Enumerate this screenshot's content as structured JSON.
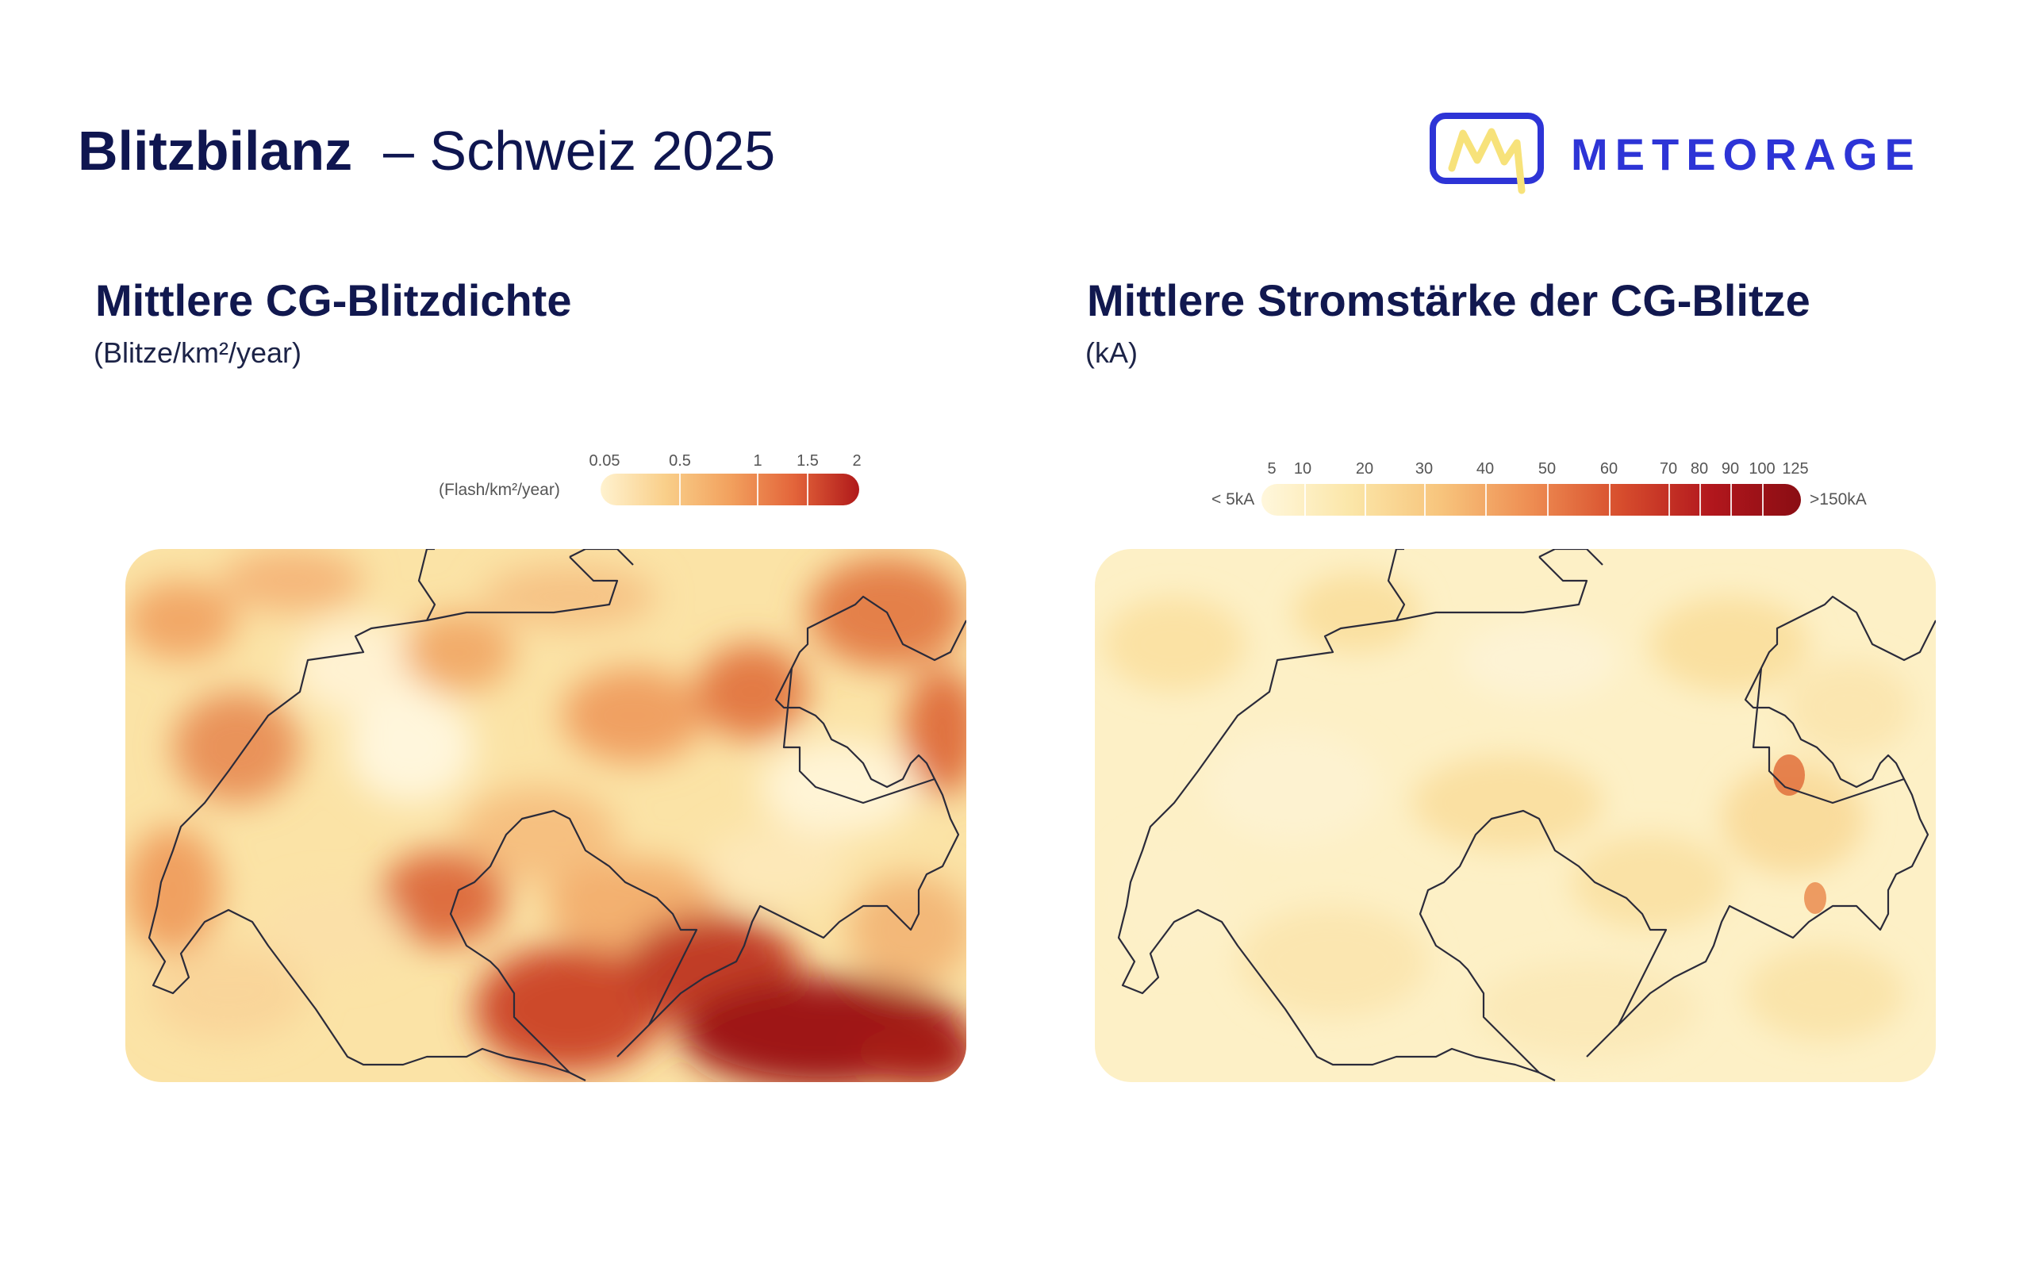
{
  "header": {
    "title_bold": "Blitzbilanz",
    "title_rest": "– Schweiz 2025",
    "logo_text": "METEORAGE",
    "logo_icon": "lightning-m-logo-icon",
    "brand_color": "#2d34d6",
    "logo_accent_color": "#f7e27a"
  },
  "density_panel": {
    "title": "Mittlere CG-Blitzdichte",
    "subtitle": "(Blitze/km²/year)",
    "legend": {
      "unit_label": "(Flash/km²/year)",
      "ticks": [
        "0.05",
        "0.5",
        "1",
        "1.5",
        "2"
      ],
      "colors": [
        "#fff2cf",
        "#f9cf8a",
        "#f2a15e",
        "#e3643a",
        "#b0191a"
      ]
    }
  },
  "current_panel": {
    "title": "Mittlere Stromstärke der CG-Blitze",
    "subtitle": "(kA)",
    "legend": {
      "low_label": "< 5kA",
      "high_label": ">150kA",
      "ticks": [
        "5",
        "10",
        "20",
        "30",
        "40",
        "50",
        "60",
        "70",
        "80",
        "90",
        "100",
        "125"
      ],
      "colors": [
        "#fff7dc",
        "#fbe6a8",
        "#f7c47c",
        "#ee8d52",
        "#d74d2d",
        "#b2171d",
        "#8a0d13"
      ]
    }
  },
  "map_colors": {
    "border_line": "#2b2b3a",
    "density_background": "#fbe3a6",
    "current_background": "#fdf0c6"
  }
}
